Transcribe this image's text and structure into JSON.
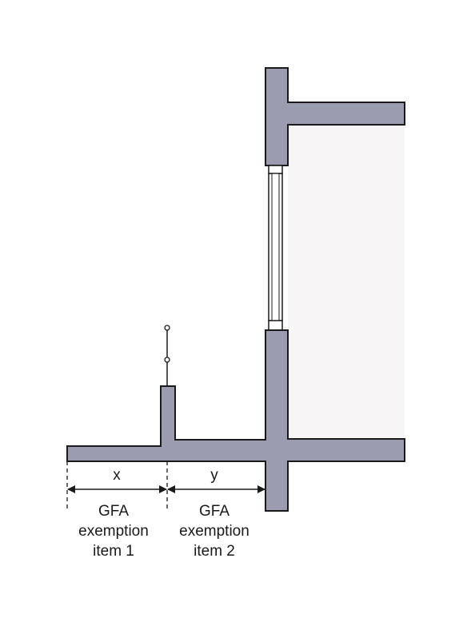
{
  "colors": {
    "wall": "#9c9cb0",
    "outline": "#1a1a1a",
    "interior": "#f8f5f7",
    "background": "#ffffff"
  },
  "dimensions": {
    "x_label": "x",
    "y_label": "y"
  },
  "labels": {
    "item1": [
      "GFA",
      "exemption",
      "item 1"
    ],
    "item2": [
      "GFA",
      "exemption",
      "item 2"
    ]
  }
}
